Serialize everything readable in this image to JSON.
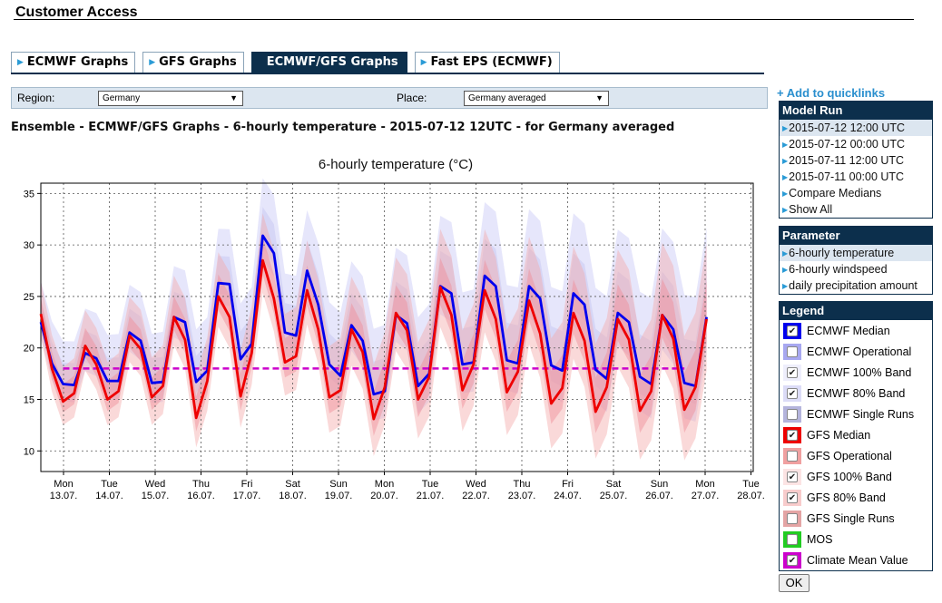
{
  "header": {
    "title": "Customer Access"
  },
  "tabs": [
    {
      "label": "ECMWF Graphs",
      "active": false
    },
    {
      "label": "GFS Graphs",
      "active": false
    },
    {
      "label": "ECMWF/GFS Graphs",
      "active": true
    },
    {
      "label": "Fast EPS (ECMWF)",
      "active": false
    }
  ],
  "filters": {
    "region_label": "Region:",
    "region_value": "Germany",
    "place_label": "Place:",
    "place_value": "Germany averaged"
  },
  "subtitle": "Ensemble - ECMWF/GFS Graphs - 6-hourly temperature - 2015-07-12 12UTC - for Germany averaged",
  "quicklinks": {
    "label": "Add to quicklinks"
  },
  "model_run": {
    "title": "Model Run",
    "items": [
      "2015-07-12 12:00 UTC",
      "2015-07-12 00:00 UTC",
      "2015-07-11 12:00 UTC",
      "2015-07-11 00:00 UTC",
      "Compare Medians",
      "Show All"
    ],
    "selected": 0
  },
  "parameter": {
    "title": "Parameter",
    "items": [
      "6-hourly temperature",
      "6-hourly windspeed",
      "daily precipitation amount"
    ],
    "selected": 0
  },
  "legend": {
    "title": "Legend",
    "items": [
      {
        "label": "ECMWF Median",
        "checked": true,
        "color": "#0000ee"
      },
      {
        "label": "ECMWF Operational",
        "checked": false,
        "color": "#a8a8f0"
      },
      {
        "label": "ECMWF 100% Band",
        "checked": true,
        "color": "#eeeefc"
      },
      {
        "label": "ECMWF 80% Band",
        "checked": true,
        "color": "#dcdcf7"
      },
      {
        "label": "ECMWF Single Runs",
        "checked": false,
        "color": "#b4b4dc"
      },
      {
        "label": "GFS Median",
        "checked": true,
        "color": "#ee0000"
      },
      {
        "label": "GFS Operational",
        "checked": false,
        "color": "#f0a0a0"
      },
      {
        "label": "GFS 100% Band",
        "checked": true,
        "color": "#fce4e4"
      },
      {
        "label": "GFS 80% Band",
        "checked": true,
        "color": "#f8cccc"
      },
      {
        "label": "GFS Single Runs",
        "checked": false,
        "color": "#e4a4a4"
      },
      {
        "label": "MOS",
        "checked": false,
        "color": "#22cc22"
      },
      {
        "label": "Climate Mean Value",
        "checked": true,
        "color": "#cc00cc"
      }
    ]
  },
  "ok_label": "OK",
  "chart_data": {
    "type": "line",
    "title": "6-hourly temperature (°C)",
    "ylim": [
      8,
      36
    ],
    "yticks": [
      10,
      15,
      20,
      25,
      30,
      35
    ],
    "x_day_labels": [
      {
        "day": "Mon",
        "date": "13.07."
      },
      {
        "day": "Tue",
        "date": "14.07."
      },
      {
        "day": "Wed",
        "date": "15.07."
      },
      {
        "day": "Thu",
        "date": "16.07."
      },
      {
        "day": "Fri",
        "date": "17.07."
      },
      {
        "day": "Sat",
        "date": "18.07."
      },
      {
        "day": "Sun",
        "date": "19.07."
      },
      {
        "day": "Mon",
        "date": "20.07."
      },
      {
        "day": "Tue",
        "date": "21.07."
      },
      {
        "day": "Wed",
        "date": "22.07."
      },
      {
        "day": "Thu",
        "date": "23.07."
      },
      {
        "day": "Fri",
        "date": "24.07."
      },
      {
        "day": "Sat",
        "date": "25.07."
      },
      {
        "day": "Sun",
        "date": "26.07."
      },
      {
        "day": "Mon",
        "date": "27.07."
      },
      {
        "day": "Tue",
        "date": "28.07."
      }
    ],
    "grid": true,
    "series": [
      {
        "name": "ECMWF Median",
        "color": "#0000ee",
        "values": [
          22.5,
          18.5,
          16.5,
          16.4,
          19.5,
          19.0,
          16.8,
          16.8,
          21.5,
          20.7,
          16.6,
          16.7,
          23.0,
          22.5,
          16.7,
          17.8,
          26.3,
          26.2,
          18.9,
          20.4,
          30.9,
          29.2,
          21.5,
          21.2,
          27.5,
          24.2,
          18.4,
          17.3,
          22.2,
          20.7,
          15.5,
          15.8,
          23.2,
          22.4,
          16.3,
          17.5,
          26.0,
          25.3,
          18.4,
          18.6,
          27.0,
          26.0,
          18.8,
          18.5,
          26.0,
          24.8,
          18.3,
          17.8,
          25.3,
          24.2,
          17.9,
          17.0,
          23.4,
          22.5,
          17.2,
          16.5,
          23.2,
          21.8,
          16.6,
          16.3,
          23.0
        ]
      },
      {
        "name": "GFS Median",
        "color": "#ee0000",
        "values": [
          23.3,
          18.0,
          14.8,
          15.6,
          20.2,
          18.4,
          15.0,
          15.8,
          21.2,
          19.9,
          15.2,
          16.3,
          23.0,
          20.8,
          13.2,
          16.8,
          25.0,
          23.0,
          15.3,
          19.5,
          28.5,
          24.8,
          18.6,
          19.2,
          25.6,
          21.8,
          15.2,
          15.9,
          21.8,
          19.6,
          13.1,
          16.2,
          23.4,
          21.7,
          15.0,
          17.2,
          25.9,
          23.2,
          15.9,
          18.4,
          25.6,
          22.8,
          15.7,
          17.7,
          24.6,
          21.4,
          14.6,
          16.1,
          23.4,
          20.7,
          13.8,
          16.2,
          22.8,
          20.8,
          13.9,
          15.8,
          23.2,
          20.9,
          14.0,
          16.2,
          22.8
        ]
      }
    ],
    "climate_mean": {
      "name": "Climate Mean Value",
      "value": 18.0,
      "from_index": 2,
      "to_index": 58
    }
  }
}
